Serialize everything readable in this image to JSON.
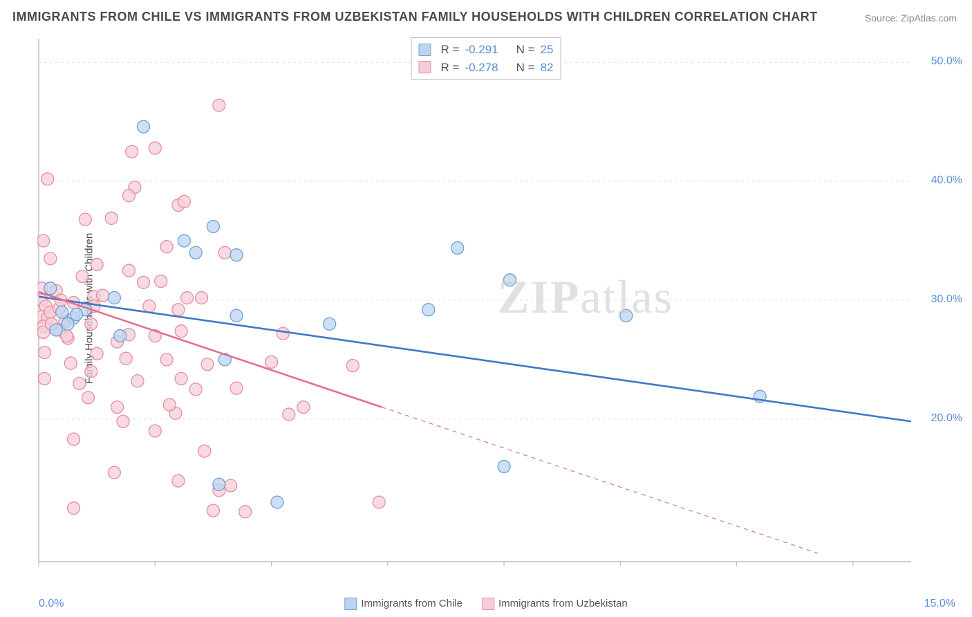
{
  "title": "IMMIGRANTS FROM CHILE VS IMMIGRANTS FROM UZBEKISTAN FAMILY HOUSEHOLDS WITH CHILDREN CORRELATION CHART",
  "source": "Source: ZipAtlas.com",
  "ylabel": "Family Households with Children",
  "watermark_zip": "ZIP",
  "watermark_atlas": "atlas",
  "series": {
    "chile": {
      "label": "Immigrants from Chile",
      "fill": "#bcd4ef",
      "stroke": "#6f9fd8",
      "line_color": "#3e78c7",
      "r_value": "-0.291",
      "n_value": "25",
      "trend": {
        "x1": 0.0,
        "y1": 30.3,
        "x2": 15.0,
        "y2": 19.8
      },
      "points": [
        {
          "x": 1.8,
          "y": 44.6
        },
        {
          "x": 2.5,
          "y": 35.0
        },
        {
          "x": 3.0,
          "y": 36.2
        },
        {
          "x": 2.7,
          "y": 34.0
        },
        {
          "x": 3.4,
          "y": 33.8
        },
        {
          "x": 7.2,
          "y": 34.4
        },
        {
          "x": 0.2,
          "y": 31.0
        },
        {
          "x": 0.4,
          "y": 29.0
        },
        {
          "x": 0.6,
          "y": 28.5
        },
        {
          "x": 0.8,
          "y": 29.2
        },
        {
          "x": 0.5,
          "y": 28.0
        },
        {
          "x": 1.3,
          "y": 30.2
        },
        {
          "x": 1.4,
          "y": 27.0
        },
        {
          "x": 0.3,
          "y": 27.5
        },
        {
          "x": 0.65,
          "y": 28.8
        },
        {
          "x": 3.4,
          "y": 28.7
        },
        {
          "x": 3.2,
          "y": 25.0
        },
        {
          "x": 3.1,
          "y": 14.5
        },
        {
          "x": 4.1,
          "y": 13.0
        },
        {
          "x": 6.7,
          "y": 29.2
        },
        {
          "x": 5.0,
          "y": 28.0
        },
        {
          "x": 8.1,
          "y": 31.7
        },
        {
          "x": 10.1,
          "y": 28.7
        },
        {
          "x": 12.4,
          "y": 21.9
        },
        {
          "x": 8.0,
          "y": 16.0
        }
      ]
    },
    "uzbekistan": {
      "label": "Immigrants from Uzbekistan",
      "fill": "#f6cdd7",
      "stroke": "#e88ca2",
      "line_color": "#e36f8d",
      "r_value": "-0.278",
      "n_value": "82",
      "trend_solid": {
        "x1": 0.0,
        "y1": 30.7,
        "x2": 5.9,
        "y2": 21.0
      },
      "trend_dash": {
        "x1": 5.9,
        "y1": 21.0,
        "x2": 13.4,
        "y2": 8.7
      },
      "points": [
        {
          "x": 0.15,
          "y": 40.2
        },
        {
          "x": 1.65,
          "y": 39.5
        },
        {
          "x": 1.55,
          "y": 38.8
        },
        {
          "x": 2.4,
          "y": 38.0
        },
        {
          "x": 2.5,
          "y": 38.3
        },
        {
          "x": 3.1,
          "y": 46.4
        },
        {
          "x": 0.8,
          "y": 36.8
        },
        {
          "x": 1.25,
          "y": 36.9
        },
        {
          "x": 1.6,
          "y": 42.5
        },
        {
          "x": 2.0,
          "y": 42.8
        },
        {
          "x": 0.08,
          "y": 35.0
        },
        {
          "x": 2.2,
          "y": 34.5
        },
        {
          "x": 3.2,
          "y": 34.0
        },
        {
          "x": 0.2,
          "y": 33.5
        },
        {
          "x": 1.0,
          "y": 33.0
        },
        {
          "x": 1.55,
          "y": 32.5
        },
        {
          "x": 2.1,
          "y": 31.6
        },
        {
          "x": 0.05,
          "y": 31.0
        },
        {
          "x": 0.3,
          "y": 30.8
        },
        {
          "x": 0.95,
          "y": 30.3
        },
        {
          "x": 1.1,
          "y": 30.4
        },
        {
          "x": 2.8,
          "y": 30.2
        },
        {
          "x": 0.05,
          "y": 30.0
        },
        {
          "x": 0.12,
          "y": 29.5
        },
        {
          "x": 0.6,
          "y": 29.8
        },
        {
          "x": 0.95,
          "y": 29.5
        },
        {
          "x": 1.9,
          "y": 29.5
        },
        {
          "x": 2.4,
          "y": 29.2
        },
        {
          "x": 2.55,
          "y": 30.2
        },
        {
          "x": 0.05,
          "y": 28.6
        },
        {
          "x": 0.15,
          "y": 28.5
        },
        {
          "x": 0.45,
          "y": 28.2
        },
        {
          "x": 0.9,
          "y": 28.0
        },
        {
          "x": 0.08,
          "y": 27.8
        },
        {
          "x": 0.08,
          "y": 27.3
        },
        {
          "x": 0.35,
          "y": 27.5
        },
        {
          "x": 0.5,
          "y": 26.8
        },
        {
          "x": 1.35,
          "y": 26.5
        },
        {
          "x": 1.55,
          "y": 27.1
        },
        {
          "x": 2.0,
          "y": 27.0
        },
        {
          "x": 2.45,
          "y": 27.4
        },
        {
          "x": 4.2,
          "y": 27.2
        },
        {
          "x": 0.1,
          "y": 25.6
        },
        {
          "x": 1.0,
          "y": 25.5
        },
        {
          "x": 1.5,
          "y": 25.1
        },
        {
          "x": 2.2,
          "y": 25.0
        },
        {
          "x": 2.9,
          "y": 24.6
        },
        {
          "x": 4.0,
          "y": 24.8
        },
        {
          "x": 0.55,
          "y": 24.7
        },
        {
          "x": 0.9,
          "y": 24.0
        },
        {
          "x": 0.1,
          "y": 23.4
        },
        {
          "x": 0.7,
          "y": 23.0
        },
        {
          "x": 1.7,
          "y": 23.2
        },
        {
          "x": 2.45,
          "y": 23.4
        },
        {
          "x": 2.7,
          "y": 22.5
        },
        {
          "x": 3.4,
          "y": 22.6
        },
        {
          "x": 5.4,
          "y": 24.5
        },
        {
          "x": 0.85,
          "y": 21.8
        },
        {
          "x": 1.35,
          "y": 21.0
        },
        {
          "x": 2.35,
          "y": 20.5
        },
        {
          "x": 4.3,
          "y": 20.4
        },
        {
          "x": 4.55,
          "y": 21.0
        },
        {
          "x": 1.45,
          "y": 19.8
        },
        {
          "x": 2.0,
          "y": 19.0
        },
        {
          "x": 0.6,
          "y": 18.3
        },
        {
          "x": 2.85,
          "y": 17.3
        },
        {
          "x": 1.3,
          "y": 15.5
        },
        {
          "x": 2.4,
          "y": 14.8
        },
        {
          "x": 3.3,
          "y": 14.4
        },
        {
          "x": 3.1,
          "y": 14.0
        },
        {
          "x": 5.85,
          "y": 13.0
        },
        {
          "x": 0.6,
          "y": 12.5
        },
        {
          "x": 3.0,
          "y": 12.3
        },
        {
          "x": 3.55,
          "y": 12.2
        },
        {
          "x": 0.2,
          "y": 29.0
        },
        {
          "x": 0.35,
          "y": 29.3
        },
        {
          "x": 0.75,
          "y": 32.0
        },
        {
          "x": 0.38,
          "y": 30.0
        },
        {
          "x": 0.22,
          "y": 28.0
        },
        {
          "x": 0.48,
          "y": 27.0
        },
        {
          "x": 1.8,
          "y": 31.5
        },
        {
          "x": 2.25,
          "y": 21.2
        }
      ]
    }
  },
  "axes": {
    "xlim": [
      0,
      15
    ],
    "ylim": [
      8,
      52
    ],
    "yticks": [
      {
        "v": 20,
        "label": "20.0%"
      },
      {
        "v": 30,
        "label": "30.0%"
      },
      {
        "v": 40,
        "label": "40.0%"
      },
      {
        "v": 50,
        "label": "50.0%"
      }
    ],
    "xtick_major_step": 2,
    "xtick_left_label": "0.0%",
    "xtick_right_label": "15.0%",
    "grid_color": "#e4e4e4",
    "axis_color": "#bdbdbd",
    "marker_radius": 9,
    "marker_stroke_w": 1.3,
    "line_w": 2.6
  },
  "legend_text": {
    "R": "R =",
    "N": "N ="
  }
}
